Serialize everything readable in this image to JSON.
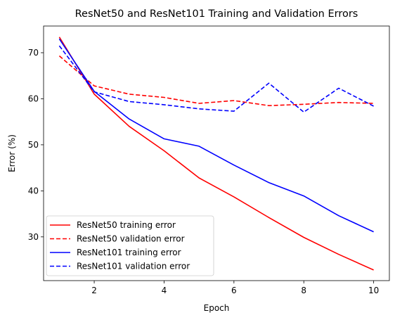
{
  "chart_data": {
    "type": "line",
    "title": "ResNet50 and ResNet101 Training and Validation Errors",
    "xlabel": "Epoch",
    "ylabel": "Error (%)",
    "xlim": [
      0.55,
      10.45
    ],
    "ylim": [
      20.5,
      75.8
    ],
    "x_ticks": [
      2,
      4,
      6,
      8,
      10
    ],
    "y_ticks": [
      30,
      40,
      50,
      60,
      70
    ],
    "grid": false,
    "legend_position": "bottom-left",
    "x": [
      1,
      2,
      3,
      4,
      5,
      6,
      7,
      8,
      9,
      10
    ],
    "series": [
      {
        "name": "ResNet50 training error",
        "color": "#ff0000",
        "dash": "solid",
        "values": [
          73.4,
          61.0,
          54.0,
          48.7,
          42.8,
          38.7,
          34.2,
          29.9,
          26.2,
          22.8
        ]
      },
      {
        "name": "ResNet50 validation error",
        "color": "#ff0000",
        "dash": "dashed",
        "values": [
          69.3,
          62.8,
          61.0,
          60.3,
          59.0,
          59.6,
          58.5,
          58.8,
          59.2,
          59.0
        ]
      },
      {
        "name": "ResNet101 training error",
        "color": "#0000ff",
        "dash": "solid",
        "values": [
          73.0,
          61.6,
          55.6,
          51.3,
          49.7,
          45.6,
          41.8,
          38.9,
          34.6,
          31.1
        ]
      },
      {
        "name": "ResNet101 validation error",
        "color": "#0000ff",
        "dash": "dashed",
        "values": [
          71.5,
          61.5,
          59.4,
          58.7,
          57.8,
          57.3,
          63.4,
          57.1,
          62.3,
          58.4
        ]
      }
    ]
  }
}
